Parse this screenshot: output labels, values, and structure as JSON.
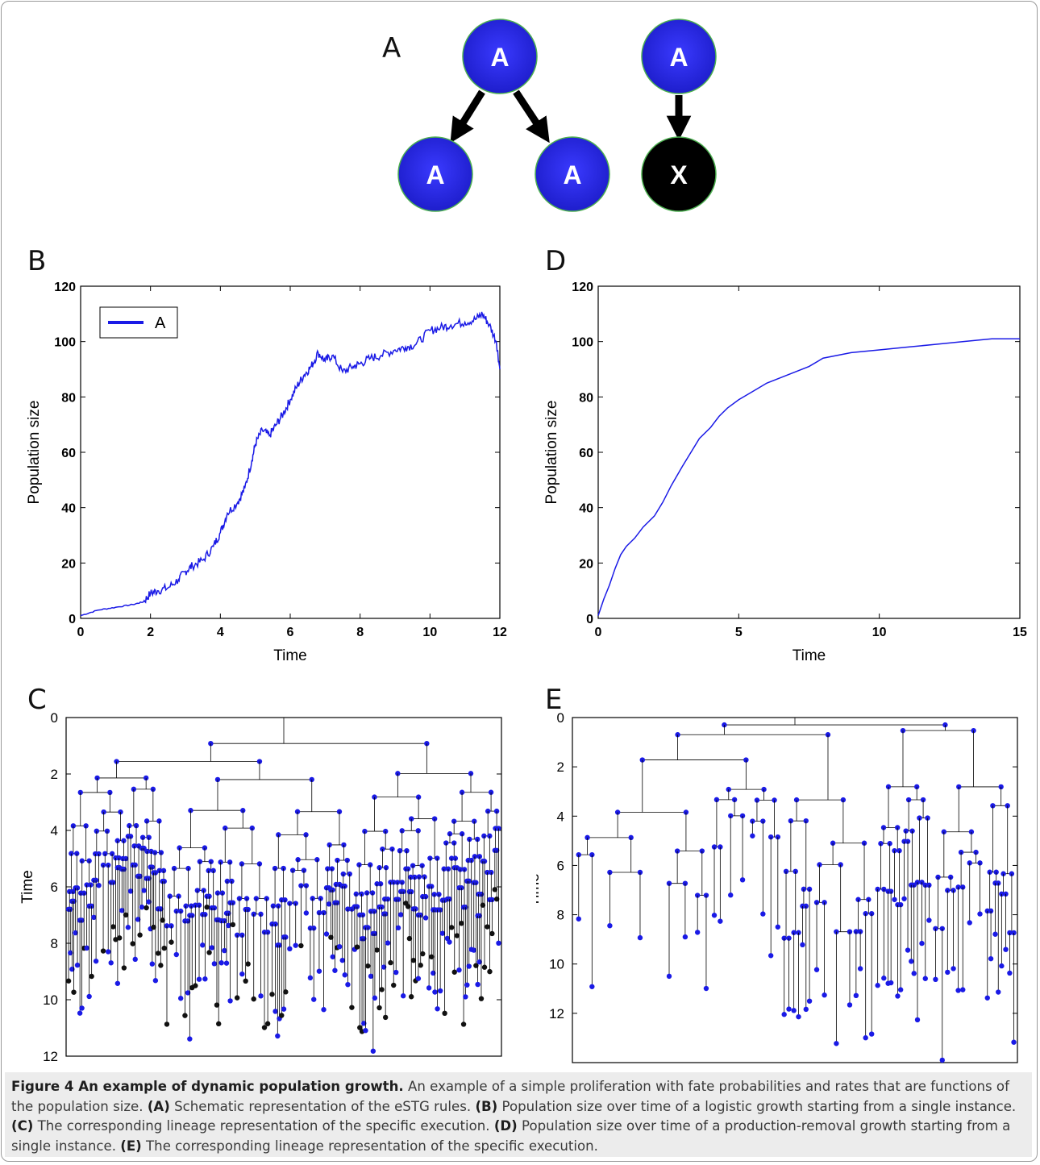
{
  "figure": {
    "panel_letters": {
      "A": "A",
      "B": "B",
      "C": "C",
      "D": "D",
      "E": "E"
    },
    "schematic": {
      "node_label_a": "A",
      "node_label_x": "X",
      "node_color": "#2222dd",
      "death_color": "#000000"
    },
    "caption": {
      "title": "Figure 4 An example of dynamic population growth.",
      "intro": " An example of a simple proliferation with fate probabilities and rates that are functions of the population size. ",
      "a_tag": "(A)",
      "a_text": " Schematic representation of the eSTG rules. ",
      "b_tag": "(B)",
      "b_text": " Population size over time of a logistic growth starting from a single instance. ",
      "c_tag": "(C)",
      "c_text": " The corresponding lineage representation of the specific execution. ",
      "d_tag": "(D)",
      "d_text": " Population size over time of a production-removal growth starting from a single instance. ",
      "e_tag": "(E)",
      "e_text": " The corresponding lineage representation of the specific execution."
    }
  },
  "chart_data": [
    {
      "panel": "B",
      "type": "line",
      "xlabel": "Time",
      "ylabel": "Population size",
      "xlim": [
        0,
        12
      ],
      "ylim": [
        0,
        120
      ],
      "xticks": [
        "0",
        "2",
        "4",
        "6",
        "8",
        "10",
        "12"
      ],
      "yticks": [
        "0",
        "20",
        "40",
        "60",
        "80",
        "100",
        "120"
      ],
      "legend": "top-left",
      "color": "#1a1ae6",
      "series": [
        {
          "name": "A",
          "x": [
            0,
            0.5,
            1,
            1.5,
            1.8,
            2,
            2.2,
            2.5,
            2.8,
            3,
            3.2,
            3.5,
            3.8,
            4,
            4.2,
            4.5,
            4.7,
            4.9,
            5,
            5.2,
            5.4,
            5.6,
            5.8,
            6,
            6.2,
            6.4,
            6.6,
            6.8,
            7,
            7.2,
            7.5,
            7.8,
            8,
            8.3,
            8.6,
            9,
            9.3,
            9.6,
            10,
            10.3,
            10.6,
            11,
            11.3,
            11.5,
            11.7,
            11.9,
            12
          ],
          "y": [
            1,
            3,
            4,
            5,
            6,
            9,
            10,
            11,
            14,
            17,
            19,
            21,
            26,
            31,
            38,
            42,
            47,
            57,
            63,
            68,
            66,
            70,
            74,
            79,
            84,
            88,
            91,
            96,
            93,
            95,
            89,
            91,
            92,
            94,
            95,
            97,
            98,
            99,
            104,
            105,
            106,
            107,
            108,
            110,
            106,
            100,
            90
          ]
        }
      ]
    },
    {
      "panel": "D",
      "type": "line",
      "xlabel": "Time",
      "ylabel": "Population size",
      "xlim": [
        0,
        15
      ],
      "ylim": [
        0,
        120
      ],
      "xticks": [
        "0",
        "5",
        "10",
        "15"
      ],
      "yticks": [
        "0",
        "20",
        "40",
        "60",
        "80",
        "100",
        "120"
      ],
      "color": "#1a1ae6",
      "series": [
        {
          "x": [
            0,
            0.2,
            0.4,
            0.6,
            0.8,
            1,
            1.3,
            1.6,
            2,
            2.3,
            2.6,
            3,
            3.3,
            3.6,
            4,
            4.3,
            4.6,
            5,
            5.5,
            6,
            6.5,
            7,
            7.5,
            8,
            9,
            10,
            11,
            12,
            13,
            14,
            15
          ],
          "y": [
            1,
            7,
            12,
            18,
            23,
            26,
            29,
            33,
            37,
            42,
            48,
            55,
            60,
            65,
            69,
            73,
            76,
            79,
            82,
            85,
            87,
            89,
            91,
            94,
            96,
            97,
            98,
            99,
            100,
            101,
            101
          ]
        }
      ]
    },
    {
      "panel": "C",
      "type": "lineage_tree",
      "ylabel": "Time",
      "ylim": [
        12,
        0
      ],
      "yticks": [
        "0",
        "2",
        "4",
        "6",
        "8",
        "10",
        "12"
      ],
      "colors": {
        "alive": "#1a1ae6",
        "dead": "#111111"
      }
    },
    {
      "panel": "E",
      "type": "lineage_tree",
      "ylabel": "Time",
      "ylim": [
        14,
        0
      ],
      "yticks": [
        "0",
        "2",
        "4",
        "6",
        "8",
        "10",
        "12"
      ],
      "colors": {
        "alive": "#1a1ae6"
      }
    }
  ]
}
